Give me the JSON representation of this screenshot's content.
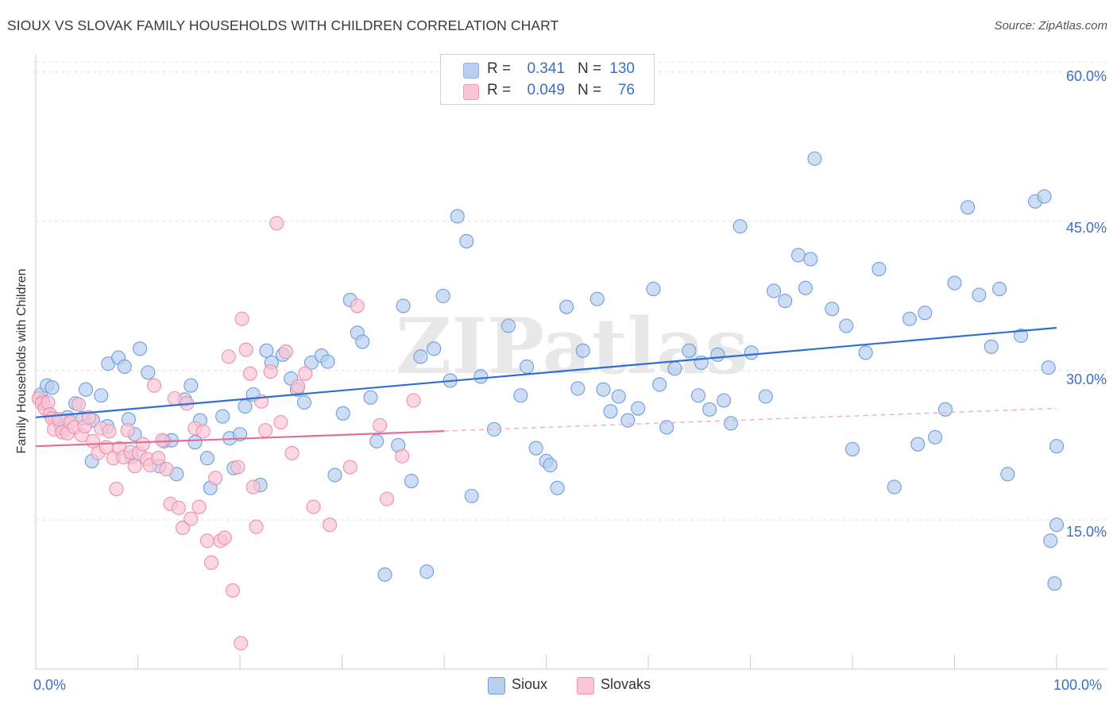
{
  "header": {
    "title": "SIOUX VS SLOVAK FAMILY HOUSEHOLDS WITH CHILDREN CORRELATION CHART",
    "source": "Source: ZipAtlas.com"
  },
  "watermark": "ZIPatlas",
  "legend_stats": [
    {
      "r_label": "R =",
      "r_value": "0.341",
      "n_label": "N =",
      "n_value": "130",
      "color": "#b8cff0",
      "border": "#8fb1e6"
    },
    {
      "r_label": "R =",
      "r_value": "0.049",
      "n_label": "N =",
      "n_value": "76",
      "color": "#f8c6d4",
      "border": "#f09ab4"
    }
  ],
  "legend_series": [
    {
      "label": "Sioux",
      "color": "#b8cff0",
      "border": "#6f9de0"
    },
    {
      "label": "Slovaks",
      "color": "#f8c6d4",
      "border": "#ee8fae"
    }
  ],
  "axis_labels": {
    "x_min": "0.0%",
    "x_max": "100.0%",
    "y_ticks": [
      "60.0%",
      "45.0%",
      "30.0%",
      "15.0%"
    ]
  },
  "chart_data": {
    "type": "scatter",
    "title": "SIOUX VS SLOVAK FAMILY HOUSEHOLDS WITH CHILDREN CORRELATION CHART",
    "xlabel": "",
    "ylabel": "Family Households with Children",
    "xlim": [
      0,
      100
    ],
    "ylim": [
      0,
      61.5
    ],
    "y_ticks": [
      15,
      30,
      45,
      60
    ],
    "grid": "horizontal dashed",
    "legend_position": "top-center",
    "series": [
      {
        "name": "Sioux",
        "color": "#6f9de0",
        "fill": "#b8cff0",
        "r": 0.341,
        "n": 130,
        "trend": {
          "x": [
            0,
            100
          ],
          "y": [
            25.3,
            34.3
          ],
          "dashed_from": null
        },
        "points": [
          [
            0.5,
            27.6
          ],
          [
            0.7,
            26.9
          ],
          [
            1.1,
            28.5
          ],
          [
            1.6,
            28.3
          ],
          [
            1.9,
            25.1
          ],
          [
            2.5,
            24.2
          ],
          [
            3.1,
            25.3
          ],
          [
            3.9,
            26.7
          ],
          [
            4.6,
            25.2
          ],
          [
            4.9,
            28.1
          ],
          [
            5.5,
            20.9
          ],
          [
            5.6,
            25.0
          ],
          [
            6.4,
            27.5
          ],
          [
            7.0,
            24.4
          ],
          [
            7.1,
            30.7
          ],
          [
            8.1,
            31.3
          ],
          [
            8.7,
            30.4
          ],
          [
            9.1,
            25.1
          ],
          [
            9.4,
            21.3
          ],
          [
            9.7,
            23.6
          ],
          [
            10.2,
            32.2
          ],
          [
            11.0,
            29.8
          ],
          [
            12.1,
            20.4
          ],
          [
            12.6,
            22.9
          ],
          [
            13.3,
            23.0
          ],
          [
            13.8,
            19.6
          ],
          [
            14.6,
            27.1
          ],
          [
            15.2,
            28.5
          ],
          [
            15.6,
            22.8
          ],
          [
            16.1,
            25.0
          ],
          [
            16.8,
            21.2
          ],
          [
            17.1,
            18.2
          ],
          [
            18.3,
            25.4
          ],
          [
            19.0,
            23.2
          ],
          [
            19.4,
            20.2
          ],
          [
            20.0,
            23.6
          ],
          [
            20.5,
            26.4
          ],
          [
            21.3,
            27.6
          ],
          [
            22.0,
            18.5
          ],
          [
            22.6,
            32.0
          ],
          [
            23.1,
            30.8
          ],
          [
            24.2,
            31.6
          ],
          [
            25.0,
            29.2
          ],
          [
            25.6,
            28.1
          ],
          [
            26.3,
            26.8
          ],
          [
            27.0,
            30.8
          ],
          [
            28.0,
            31.5
          ],
          [
            28.6,
            30.9
          ],
          [
            29.3,
            19.5
          ],
          [
            30.1,
            25.7
          ],
          [
            30.8,
            37.1
          ],
          [
            31.5,
            33.8
          ],
          [
            32.0,
            32.9
          ],
          [
            32.8,
            27.3
          ],
          [
            33.4,
            22.9
          ],
          [
            34.2,
            9.5
          ],
          [
            35.5,
            22.5
          ],
          [
            36.0,
            36.5
          ],
          [
            36.8,
            18.9
          ],
          [
            37.7,
            31.4
          ],
          [
            38.3,
            9.8
          ],
          [
            39.0,
            32.2
          ],
          [
            39.9,
            37.5
          ],
          [
            40.6,
            29.0
          ],
          [
            41.3,
            45.5
          ],
          [
            42.2,
            43.0
          ],
          [
            42.7,
            17.4
          ],
          [
            43.6,
            29.4
          ],
          [
            44.9,
            24.1
          ],
          [
            46.3,
            34.5
          ],
          [
            47.5,
            27.5
          ],
          [
            48.1,
            30.4
          ],
          [
            49.0,
            22.2
          ],
          [
            50.0,
            20.9
          ],
          [
            50.4,
            20.5
          ],
          [
            51.1,
            18.2
          ],
          [
            52.0,
            36.4
          ],
          [
            53.1,
            28.2
          ],
          [
            53.6,
            32.0
          ],
          [
            55.0,
            37.2
          ],
          [
            55.6,
            28.1
          ],
          [
            56.3,
            25.9
          ],
          [
            57.1,
            27.4
          ],
          [
            58.0,
            25.0
          ],
          [
            59.0,
            26.2
          ],
          [
            60.5,
            38.2
          ],
          [
            61.1,
            28.6
          ],
          [
            61.8,
            24.3
          ],
          [
            62.6,
            30.2
          ],
          [
            64.0,
            32.0
          ],
          [
            64.9,
            27.5
          ],
          [
            65.2,
            30.8
          ],
          [
            66.0,
            26.1
          ],
          [
            66.8,
            31.6
          ],
          [
            67.4,
            27.0
          ],
          [
            68.1,
            24.7
          ],
          [
            69.0,
            44.5
          ],
          [
            70.1,
            31.8
          ],
          [
            71.5,
            27.4
          ],
          [
            72.3,
            38.0
          ],
          [
            73.4,
            37.0
          ],
          [
            74.7,
            41.6
          ],
          [
            75.4,
            38.3
          ],
          [
            75.9,
            41.2
          ],
          [
            76.3,
            51.3
          ],
          [
            78.0,
            36.2
          ],
          [
            79.4,
            34.5
          ],
          [
            80.0,
            22.1
          ],
          [
            81.3,
            31.8
          ],
          [
            82.6,
            40.2
          ],
          [
            84.1,
            18.3
          ],
          [
            85.6,
            35.2
          ],
          [
            86.4,
            22.6
          ],
          [
            87.1,
            35.8
          ],
          [
            88.1,
            23.3
          ],
          [
            89.1,
            26.1
          ],
          [
            90.0,
            38.8
          ],
          [
            91.3,
            46.4
          ],
          [
            92.4,
            37.6
          ],
          [
            93.6,
            32.4
          ],
          [
            94.4,
            38.2
          ],
          [
            95.2,
            19.6
          ],
          [
            96.5,
            33.5
          ],
          [
            97.9,
            47.0
          ],
          [
            98.8,
            47.5
          ],
          [
            99.2,
            30.3
          ],
          [
            99.4,
            12.9
          ],
          [
            99.8,
            8.6
          ],
          [
            100.0,
            14.5
          ],
          [
            100.0,
            22.4
          ]
        ]
      },
      {
        "name": "Slovaks",
        "color": "#ee8fae",
        "fill": "#f8c6d4",
        "r": 0.049,
        "n": 76,
        "trend": {
          "x": [
            0,
            100
          ],
          "y": [
            22.4,
            26.2
          ],
          "solid_until": 40
        },
        "points": [
          [
            0.3,
            27.2
          ],
          [
            0.6,
            26.7
          ],
          [
            0.9,
            26.2
          ],
          [
            1.2,
            26.8
          ],
          [
            1.4,
            25.6
          ],
          [
            1.6,
            25.2
          ],
          [
            1.8,
            24.1
          ],
          [
            2.3,
            25.1
          ],
          [
            2.6,
            23.8
          ],
          [
            3.1,
            23.7
          ],
          [
            3.4,
            24.8
          ],
          [
            3.8,
            24.3
          ],
          [
            4.2,
            26.6
          ],
          [
            4.5,
            23.5
          ],
          [
            4.8,
            24.4
          ],
          [
            5.2,
            25.3
          ],
          [
            5.6,
            22.9
          ],
          [
            6.1,
            21.7
          ],
          [
            6.4,
            24.2
          ],
          [
            6.9,
            22.3
          ],
          [
            7.2,
            23.9
          ],
          [
            7.6,
            21.2
          ],
          [
            7.9,
            18.1
          ],
          [
            8.2,
            22.2
          ],
          [
            8.6,
            21.3
          ],
          [
            9.0,
            24.0
          ],
          [
            9.3,
            21.8
          ],
          [
            9.7,
            20.4
          ],
          [
            10.1,
            21.7
          ],
          [
            10.5,
            22.6
          ],
          [
            10.9,
            21.1
          ],
          [
            11.2,
            20.5
          ],
          [
            11.6,
            28.5
          ],
          [
            12.0,
            21.2
          ],
          [
            12.4,
            23.0
          ],
          [
            12.8,
            20.1
          ],
          [
            13.2,
            16.6
          ],
          [
            13.6,
            27.2
          ],
          [
            14.0,
            16.2
          ],
          [
            14.4,
            14.2
          ],
          [
            14.8,
            26.7
          ],
          [
            15.2,
            15.1
          ],
          [
            15.6,
            24.2
          ],
          [
            16.0,
            16.3
          ],
          [
            16.4,
            23.9
          ],
          [
            16.8,
            12.9
          ],
          [
            17.2,
            10.7
          ],
          [
            17.6,
            19.2
          ],
          [
            18.1,
            12.9
          ],
          [
            18.5,
            13.2
          ],
          [
            18.9,
            31.4
          ],
          [
            19.3,
            7.9
          ],
          [
            19.8,
            20.3
          ],
          [
            20.2,
            35.2
          ],
          [
            20.6,
            32.1
          ],
          [
            21.0,
            29.7
          ],
          [
            21.3,
            18.3
          ],
          [
            21.6,
            14.3
          ],
          [
            22.1,
            26.9
          ],
          [
            22.5,
            24.0
          ],
          [
            23.0,
            29.9
          ],
          [
            23.6,
            44.8
          ],
          [
            24.0,
            24.8
          ],
          [
            24.5,
            31.9
          ],
          [
            25.1,
            21.7
          ],
          [
            25.7,
            28.4
          ],
          [
            26.4,
            29.7
          ],
          [
            27.2,
            16.3
          ],
          [
            28.8,
            14.5
          ],
          [
            30.8,
            20.3
          ],
          [
            31.5,
            36.5
          ],
          [
            33.7,
            24.5
          ],
          [
            34.4,
            17.1
          ],
          [
            35.9,
            21.4
          ],
          [
            37.0,
            27.0
          ],
          [
            20.1,
            2.6
          ]
        ]
      }
    ]
  }
}
